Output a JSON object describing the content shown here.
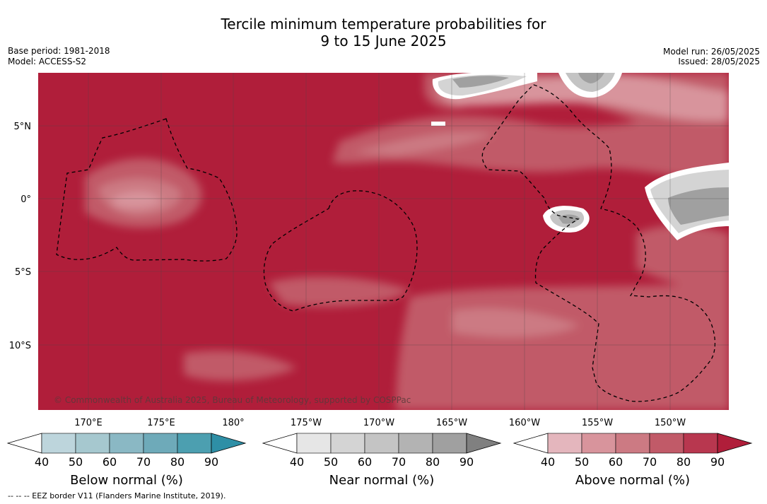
{
  "title": {
    "line1": "Tercile minimum temperature probabilities for",
    "line2": "9 to 15 June 2025"
  },
  "meta_left": {
    "base_period": "Base period: 1981-2018",
    "model": "Model: ACCESS-S2"
  },
  "meta_right": {
    "model_run": "Model run: 26/05/2025",
    "issued": "Issued: 28/05/2025"
  },
  "map": {
    "lat_labels": [
      "5°N",
      "0°",
      "5°S",
      "10°S"
    ],
    "lon_labels": [
      "170°E",
      "175°E",
      "180°",
      "175°W",
      "170°W",
      "165°W",
      "160°W",
      "155°W",
      "150°W"
    ],
    "credit": "© Commonwealth of Australia 2025, Bureau of Meteorology, supported by COSPPac"
  },
  "colorbars": [
    {
      "title": "Below normal (%)",
      "ticks": [
        "40",
        "50",
        "60",
        "70",
        "80",
        "90"
      ],
      "colors": [
        "#bdd5dc",
        "#a6c8cf",
        "#8ab8c4",
        "#6eaab9",
        "#4c9fb0",
        "#2e8fa6"
      ]
    },
    {
      "title": "Near normal (%)",
      "ticks": [
        "40",
        "50",
        "60",
        "70",
        "80",
        "90"
      ],
      "colors": [
        "#e6e6e6",
        "#d4d4d4",
        "#c4c4c4",
        "#b3b3b3",
        "#a0a0a0",
        "#808080"
      ]
    },
    {
      "title": "Above normal (%)",
      "ticks": [
        "40",
        "50",
        "60",
        "70",
        "80",
        "90"
      ],
      "colors": [
        "#e4b6bd",
        "#d8949c",
        "#cc7a83",
        "#c15a68",
        "#b8374f",
        "#b01e3a"
      ]
    }
  ],
  "footnote": "--  --  -- EEZ border V11 (Flanders Marine Institute, 2019)."
}
